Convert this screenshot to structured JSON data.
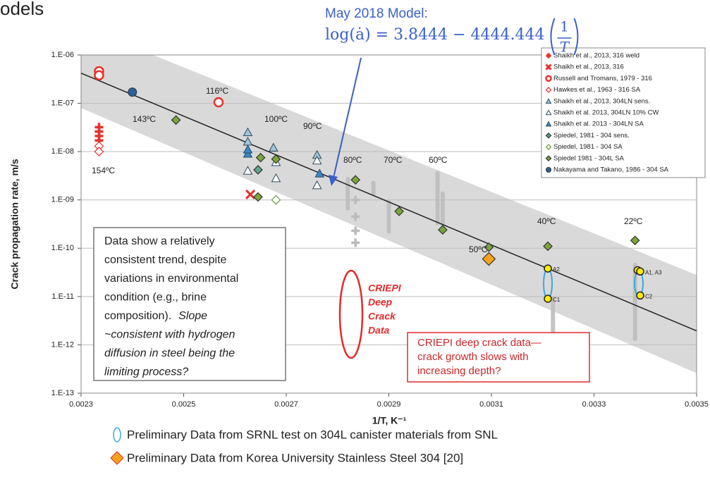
{
  "page_fragment": "odels",
  "chart_data": {
    "type": "scatter",
    "model_title": "May 2018 Model:",
    "model_equation": {
      "lhs": "log(ȧ) = 3.8444 − 4444.444",
      "numerator": "1",
      "denominator": "T"
    },
    "xlabel": "1/T, K⁻¹",
    "ylabel": "Crack propagation rate, m/s",
    "log_y": true,
    "grid": true,
    "legend_position": "upper right",
    "xlim": [
      0.0023,
      0.0035
    ],
    "xticks": [
      0.0023,
      0.0025,
      0.0027,
      0.0029,
      0.0031,
      0.0033,
      0.0035
    ],
    "ylim": [
      1e-13,
      1e-06
    ],
    "yticks": [
      {
        "value": 1e-13,
        "label": "1.E-13"
      },
      {
        "value": 1e-12,
        "label": "1.E-12"
      },
      {
        "value": 1e-11,
        "label": "1.E-11"
      },
      {
        "value": 1e-10,
        "label": "1.E-10"
      },
      {
        "value": 1e-09,
        "label": "1.E-09"
      },
      {
        "value": 1e-08,
        "label": "1.E-08"
      },
      {
        "value": 1e-07,
        "label": "1.E-07"
      },
      {
        "value": 1e-06,
        "label": "1.E-06"
      }
    ],
    "model_line": {
      "x": [
        0.0023,
        0.0035
      ],
      "y": [
        4.2e-07,
        1.95e-12
      ],
      "color": "#222222"
    },
    "band": {
      "x": [
        0.0023,
        0.0035
      ],
      "upper": [
        4e-06,
        2.8e-11
      ],
      "lower": [
        8e-08,
        2.6e-13
      ],
      "color": "#d9d9d9"
    },
    "series": [
      {
        "name": "Shaikh et al., 2013, 316 weld",
        "color": "#e8302a",
        "marker": "plus",
        "x": [
          0.002335,
          0.002335,
          0.002335,
          0.002335
        ],
        "y": [
          3.2e-08,
          2.6e-08,
          2.1e-08,
          1.7e-08
        ]
      },
      {
        "name": "Shaikh et al., 2013, 316",
        "color": "#e8302a",
        "marker": "x",
        "x": [
          0.00263
        ],
        "y": [
          1.3e-09
        ]
      },
      {
        "name": "Russell and Tromans, 1979 - 316",
        "color": "#e8302a",
        "marker": "circle-open",
        "x": [
          0.002335,
          0.002335,
          0.002568
        ],
        "y": [
          4.6e-07,
          3.8e-07,
          1.05e-07
        ]
      },
      {
        "name": "Hawkes et al., 1963 - 316 SA",
        "color": "#e8302a",
        "marker": "diamond-open",
        "x": [
          0.002335,
          0.002335
        ],
        "y": [
          1.3e-08,
          1e-08
        ]
      },
      {
        "name": "Shaikh et al., 2013, 304LN sens.",
        "color": "#a0c4d8",
        "marker": "triangle",
        "x": [
          0.002625,
          0.002625,
          0.002675,
          0.00276
        ],
        "y": [
          2.5e-08,
          1.6e-08,
          1.2e-08,
          8.5e-09
        ]
      },
      {
        "name": "Shaikh et al. 2013, 304LN 10% CW",
        "color": "#2e6a8a",
        "marker": "triangle-open",
        "x": [
          0.002625,
          0.00268,
          0.00268,
          0.00276,
          0.00276
        ],
        "y": [
          4e-09,
          6e-09,
          2.8e-09,
          2e-09,
          6.5e-09
        ]
      },
      {
        "name": "Shaikh et al. 2013 - 304LN SA",
        "color": "#3a86c8",
        "marker": "triangle",
        "x": [
          0.002625,
          0.002625,
          0.002765
        ],
        "y": [
          9e-09,
          1.1e-08,
          3.5e-09
        ]
      },
      {
        "name": "Spiedel, 1981 - 304 sens.",
        "color": "#5aa88a",
        "marker": "diamond",
        "x": [
          0.002645
        ],
        "y": [
          4.2e-09
        ]
      },
      {
        "name": "Spiedel, 1981 - 304 SA",
        "color": "#6f9a3a",
        "marker": "diamond-open",
        "x": [
          0.00268
        ],
        "y": [
          1e-09
        ]
      },
      {
        "name": "Spiedel 1981 - 304L SA",
        "color": "#7aa63c",
        "marker": "diamond",
        "x": [
          0.002485,
          0.00265,
          0.00268,
          0.002645,
          0.002835,
          0.00292,
          0.003005,
          0.003095,
          0.00321,
          0.00338
        ],
        "y": [
          4.5e-08,
          7.5e-09,
          7e-09,
          1.15e-09,
          2.6e-09,
          5.8e-10,
          2.4e-10,
          1.05e-10,
          1.1e-10,
          1.45e-10
        ]
      },
      {
        "name": "Nakayama and Takano, 1986 - 304 SA",
        "color": "#2d5f9a",
        "marker": "circle",
        "x": [
          0.0024
        ],
        "y": [
          1.7e-07
        ]
      }
    ],
    "criepi": {
      "color": "#bbbbbb",
      "x": [
        0.002835,
        0.002835,
        0.002835,
        0.002835
      ],
      "y": [
        1e-09,
        4.5e-10,
        2.3e-10,
        1.3e-10
      ],
      "range_x": [
        0.00282,
        0.00287,
        0.0029,
        0.002995,
        0.003005,
        0.00322,
        0.00338
      ],
      "range_low": [
        6e-10,
        1.2e-09,
        2e-10,
        3e-10,
        2e-10,
        1e-12,
        1.2e-12
      ],
      "range_high": [
        3e-09,
        2.5e-09,
        1e-09,
        4e-09,
        1.5e-09,
        1e-11,
        5e-11
      ]
    },
    "criepi_label": [
      "CRIEPI",
      "Deep",
      "Crack",
      "Data"
    ],
    "srnl": {
      "color": "#ffee00",
      "x": [
        0.00321,
        0.00321,
        0.003385,
        0.00339,
        0.00339
      ],
      "y": [
        3.8e-11,
        9e-12,
        3.5e-11,
        3.3e-11,
        1.05e-11
      ],
      "point_labels": [
        "A2",
        "C1",
        null,
        "A1, A3",
        "C2"
      ]
    },
    "korea": {
      "color": "#f7a21b",
      "x": [
        0.003095
      ],
      "y": [
        6e-11
      ]
    },
    "temperature_labels": [
      "154ºC",
      "143ºC",
      "116ºC",
      "100ºC",
      "90ºC",
      "80ºC",
      "70ºC",
      "60ºC",
      "50ºC",
      "40ºC",
      "22ºC"
    ],
    "note_box": [
      [
        "Data show a relatively"
      ],
      [
        "consistent trend, despite"
      ],
      [
        "variations in environmental"
      ],
      [
        "condition (e.g., brine"
      ],
      [
        "composition).",
        "Slope"
      ],
      [
        "~consistent with hydrogen"
      ],
      [
        "diffusion in steel being the"
      ],
      [
        "limiting process?"
      ]
    ],
    "criepi_note": [
      "CRIEPI deep crack data—",
      "crack growth slows with",
      "increasing depth?"
    ],
    "bottom_legend": [
      "Preliminary Data from SRNL test on 304L canister materials from SNL",
      "Preliminary Data from Korea University Stainless Steel 304 [20]"
    ]
  }
}
